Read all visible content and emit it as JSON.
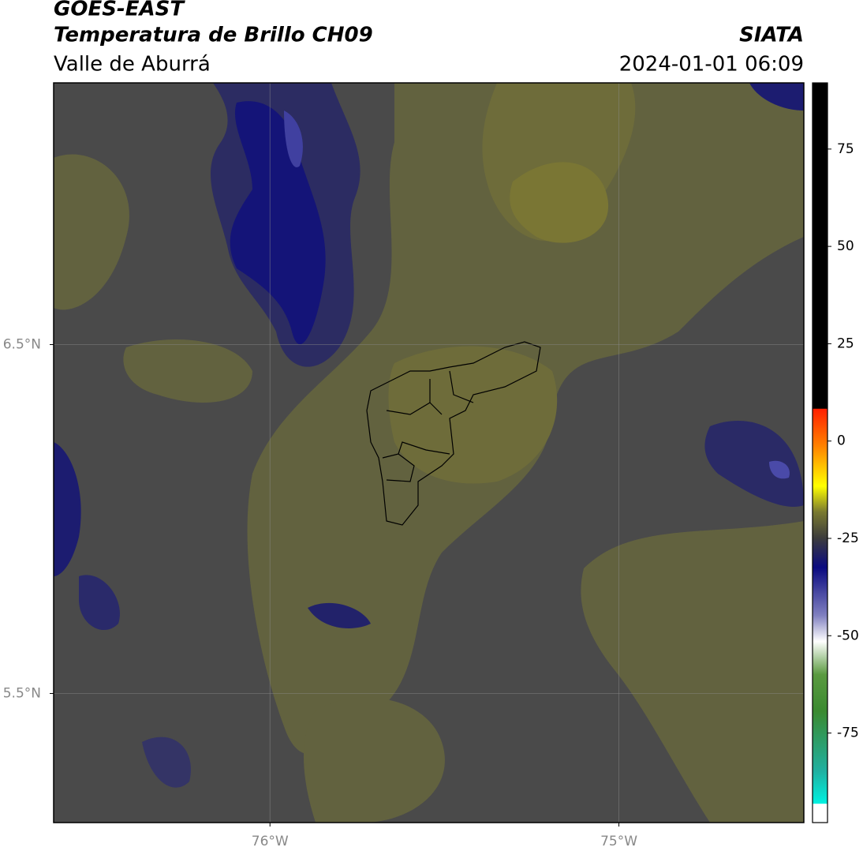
{
  "header": {
    "title": "GOES-EAST",
    "subtitle": "Temperatura de Brillo CH09",
    "region": "Valle de Aburrá",
    "source": "SIATA",
    "timestamp": "2024-01-01 06:09"
  },
  "map": {
    "xlim": [
      -76.62,
      -74.47
    ],
    "ylim": [
      5.13,
      7.25
    ],
    "xticks": [
      {
        "value": -76,
        "label": "76°W"
      },
      {
        "value": -75,
        "label": "75°W"
      }
    ],
    "yticks": [
      {
        "value": 6.5,
        "label": "6.5°N"
      },
      {
        "value": 5.5,
        "label": "5.5°N"
      }
    ],
    "grid": true
  },
  "colorbar": {
    "lim": [
      -98,
      92
    ],
    "ticks": [
      75,
      50,
      25,
      0,
      -25,
      -50,
      -75
    ]
  }
}
